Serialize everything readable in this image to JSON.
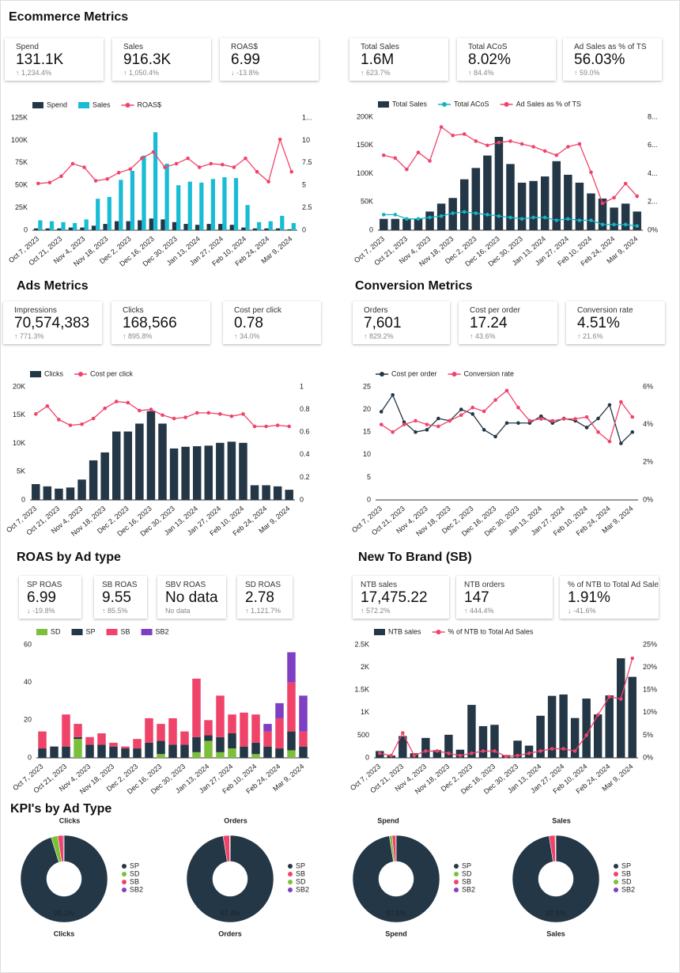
{
  "headings": [
    "Ecommerce Metrics",
    "Ads Metrics",
    "Conversion Metrics",
    "ROAS by Ad type",
    "New To Brand (SB)",
    "KPI's by Ad Type"
  ],
  "kpi_cards": [
    {
      "label": "Spend",
      "value": "131.1K",
      "change": "↑ 1,234.4%"
    },
    {
      "label": "Sales",
      "value": "916.3K",
      "change": "↑ 1,050.4%"
    },
    {
      "label": "ROAS$",
      "value": "6.99",
      "change": "↓ -13.8%"
    },
    {
      "label": "Total Sales",
      "value": "1.6M",
      "change": "↑ 623.7%"
    },
    {
      "label": "Total ACoS",
      "value": "8.02%",
      "change": "↑ 84.4%"
    },
    {
      "label": "Ad Sales as % of TS",
      "value": "56.03%",
      "change": "↑ 59.0%"
    },
    {
      "label": "Impressions",
      "value": "70,574,383",
      "change": "↑ 771.3%"
    },
    {
      "label": "Clicks",
      "value": "168,566",
      "change": "↑ 895.8%"
    },
    {
      "label": "Cost per click",
      "value": "0.78",
      "change": "↑ 34.0%"
    },
    {
      "label": "Orders",
      "value": "7,601",
      "change": "↑ 829.2%"
    },
    {
      "label": "Cost per order",
      "value": "17.24",
      "change": "↑ 43.6%"
    },
    {
      "label": "Conversion rate",
      "value": "4.51%",
      "change": "↑ 21.6%"
    },
    {
      "label": "SP ROAS",
      "value": "6.99",
      "change": "↓ -19.8%"
    },
    {
      "label": "SB ROAS",
      "value": "9.55",
      "change": "↑ 85.5%"
    },
    {
      "label": "SBV ROAS",
      "value": "No data",
      "change": "No data"
    },
    {
      "label": "SD ROAS",
      "value": "2.78",
      "change": "↑ 1,121.7%"
    },
    {
      "label": "NTB sales",
      "value": "17,475.22",
      "change": "↑ 572.2%"
    },
    {
      "label": "NTB orders",
      "value": "147",
      "change": "↑ 444.4%"
    },
    {
      "label": "% of NTB to Total Ad Sales",
      "value": "1.91%",
      "change": "↓ -41.6%"
    }
  ],
  "chart_data": [
    {
      "type": "combo",
      "grid": false,
      "legend": "top-left",
      "categories": [
        "Oct 7, 2023",
        null,
        "Oct 21, 2023",
        null,
        "Nov 4, 2023",
        null,
        "Nov 18, 2023",
        null,
        "Dec 2, 2023",
        null,
        "Dec 16, 2023",
        null,
        "Dec 30, 2023",
        null,
        "Jan 13, 2024",
        null,
        "Jan 27, 2024",
        null,
        "Feb 10, 2024",
        null,
        "Feb 24, 2024",
        null,
        "Mar 9, 2024"
      ],
      "ylim": [
        0,
        125000
      ],
      "yticks": [
        0,
        {
          "value": 25000,
          "label": "25K"
        },
        {
          "value": 50000,
          "label": "50K"
        },
        {
          "value": 75000,
          "label": "75K"
        },
        {
          "value": 100000,
          "label": "100K"
        },
        {
          "value": 125000,
          "label": "125K"
        }
      ],
      "y2lim": [
        0,
        12.5
      ],
      "y2ticks": [
        0,
        2.5,
        5,
        7.5,
        10,
        {
          "value": 12.5,
          "label": "1..."
        }
      ],
      "series": [
        {
          "name": "Spend",
          "kind": "bar",
          "color": "#243746",
          "values": [
            2000,
            2000,
            2000,
            3000,
            3000,
            5000,
            7000,
            10000,
            10000,
            11000,
            13000,
            12000,
            9000,
            7000,
            6000,
            7000,
            7000,
            6000,
            3000,
            2000,
            2000,
            2000,
            1000
          ]
        },
        {
          "name": "Sales",
          "kind": "bar",
          "color": "#19bcd4",
          "values": [
            11000,
            10000,
            9000,
            8000,
            12000,
            35000,
            37000,
            56000,
            66000,
            83000,
            109000,
            74000,
            50000,
            54000,
            53000,
            57000,
            59000,
            58000,
            28000,
            9000,
            10000,
            16000,
            8000
          ]
        },
        {
          "name": "ROAS$",
          "kind": "line",
          "axis": "y2",
          "color": "#f0436a",
          "values": [
            5.2,
            5.3,
            6.0,
            7.4,
            7.0,
            5.5,
            5.7,
            6.4,
            6.8,
            8.0,
            8.7,
            7.0,
            7.4,
            8.0,
            7.0,
            7.4,
            7.3,
            7.0,
            8.0,
            6.5,
            5.4,
            10.1,
            6.5
          ]
        }
      ]
    },
    {
      "type": "combo",
      "grid": false,
      "legend": "top-left",
      "categories": [
        "Oct 7, 2023",
        null,
        "Oct 21, 2023",
        null,
        "Nov 4, 2023",
        null,
        "Nov 18, 2023",
        null,
        "Dec 2, 2023",
        null,
        "Dec 16, 2023",
        null,
        "Dec 30, 2023",
        null,
        "Jan 13, 2024",
        null,
        "Jan 27, 2024",
        null,
        "Feb 10, 2024",
        null,
        "Feb 24, 2024",
        null,
        "Mar 9, 2024"
      ],
      "ylim": [
        0,
        200000
      ],
      "yticks": [
        0,
        {
          "value": 50000,
          "label": "50K"
        },
        {
          "value": 100000,
          "label": "100K"
        },
        {
          "value": 150000,
          "label": "150K"
        },
        {
          "value": 200000,
          "label": "200K"
        }
      ],
      "y2lim": [
        0,
        8
      ],
      "y2ticks": [
        {
          "value": 0,
          "label": "0%"
        },
        {
          "value": 2,
          "label": "2..."
        },
        {
          "value": 4,
          "label": "4..."
        },
        {
          "value": 6,
          "label": "6..."
        },
        {
          "value": 8,
          "label": "8..."
        }
      ],
      "series": [
        {
          "name": "Total Sales",
          "kind": "bar",
          "color": "#243746",
          "values": [
            20000,
            20000,
            20000,
            20000,
            33000,
            47000,
            57000,
            90000,
            110000,
            132000,
            165000,
            117000,
            84000,
            87000,
            95000,
            122000,
            98000,
            84000,
            65000,
            56000,
            40000,
            47000,
            33000
          ]
        },
        {
          "name": "Total ACoS",
          "kind": "line",
          "axis": "y2",
          "color": "#14b4c4",
          "values": [
            1.1,
            1.1,
            0.8,
            0.8,
            0.9,
            1.0,
            1.2,
            1.3,
            1.2,
            1.1,
            1.0,
            0.9,
            0.8,
            0.9,
            0.9,
            0.7,
            0.8,
            0.7,
            0.7,
            0.4,
            0.4,
            0.4,
            0.3
          ]
        },
        {
          "name": "Ad Sales as % of TS",
          "kind": "line",
          "axis": "y2",
          "color": "#f0436a",
          "values": [
            5.3,
            5.1,
            4.3,
            5.5,
            4.9,
            7.3,
            6.7,
            6.8,
            6.3,
            6.0,
            6.2,
            6.3,
            6.1,
            5.9,
            5.6,
            5.3,
            5.9,
            6.1,
            4.1,
            1.9,
            2.3,
            3.3,
            2.4
          ]
        }
      ]
    },
    {
      "type": "combo",
      "grid": false,
      "legend": "top-left",
      "categories": [
        "Oct 7, 2023",
        null,
        "Oct 21, 2023",
        null,
        "Nov 4, 2023",
        null,
        "Nov 18, 2023",
        null,
        "Dec 2, 2023",
        null,
        "Dec 16, 2023",
        null,
        "Dec 30, 2023",
        null,
        "Jan 13, 2024",
        null,
        "Jan 27, 2024",
        null,
        "Feb 10, 2024",
        null,
        "Feb 24, 2024",
        null,
        "Mar 9, 2024"
      ],
      "ylim": [
        0,
        20000
      ],
      "yticks": [
        0,
        {
          "value": 5000,
          "label": "5K"
        },
        {
          "value": 10000,
          "label": "10K"
        },
        {
          "value": 15000,
          "label": "15K"
        },
        {
          "value": 20000,
          "label": "20K"
        }
      ],
      "y2lim": [
        0,
        1
      ],
      "y2ticks": [
        0,
        0.2,
        0.4,
        0.6,
        0.8,
        1
      ],
      "series": [
        {
          "name": "Clicks",
          "kind": "bar",
          "color": "#243746",
          "values": [
            2800,
            2400,
            2000,
            2200,
            3600,
            7000,
            8400,
            12100,
            12100,
            13500,
            15700,
            13500,
            9100,
            9400,
            9500,
            9600,
            10100,
            10300,
            10100,
            2600,
            2600,
            2400,
            1800
          ]
        },
        {
          "name": "Cost per click",
          "kind": "line",
          "axis": "y2",
          "color": "#f0436a",
          "values": [
            0.76,
            0.83,
            0.71,
            0.66,
            0.67,
            0.72,
            0.81,
            0.87,
            0.86,
            0.79,
            0.8,
            0.75,
            0.72,
            0.73,
            0.77,
            0.77,
            0.76,
            0.74,
            0.76,
            0.65,
            0.65,
            0.66,
            0.65
          ]
        }
      ]
    },
    {
      "type": "combo",
      "grid": false,
      "legend": "top-left",
      "categories": [
        "Oct 7, 2023",
        null,
        "Oct 21, 2023",
        null,
        "Nov 4, 2023",
        null,
        "Nov 18, 2023",
        null,
        "Dec 2, 2023",
        null,
        "Dec 16, 2023",
        null,
        "Dec 30, 2023",
        null,
        "Jan 13, 2024",
        null,
        "Jan 27, 2024",
        null,
        "Feb 10, 2024",
        null,
        "Feb 24, 2024",
        null,
        "Mar 9, 2024"
      ],
      "ylim": [
        0,
        25
      ],
      "yticks": [
        0,
        5,
        10,
        15,
        20,
        25
      ],
      "y2lim": [
        0,
        6
      ],
      "y2ticks": [
        {
          "value": 0,
          "label": "0%"
        },
        {
          "value": 2,
          "label": "2%"
        },
        {
          "value": 4,
          "label": "4%"
        },
        {
          "value": 6,
          "label": "6%"
        }
      ],
      "series": [
        {
          "name": "Cost per order",
          "kind": "line",
          "color": "#243746",
          "values": [
            19.5,
            23.2,
            17.2,
            15,
            15.5,
            18,
            17.5,
            20,
            19,
            15.5,
            14,
            17,
            17,
            17,
            18.5,
            17,
            18,
            17.5,
            16,
            18,
            21,
            12.5,
            15
          ]
        },
        {
          "name": "Conversion rate",
          "kind": "line",
          "axis": "y2",
          "color": "#f0436a",
          "values": [
            4.0,
            3.6,
            4.0,
            4.2,
            4.0,
            3.9,
            4.2,
            4.5,
            4.9,
            4.7,
            5.3,
            5.8,
            4.9,
            4.2,
            4.3,
            4.2,
            4.3,
            4.3,
            4.4,
            3.6,
            3.1,
            5.2,
            4.4
          ]
        }
      ]
    },
    {
      "type": "stacked",
      "grid": false,
      "legend": "top-left",
      "categories": [
        "Oct 7, 2023",
        null,
        "Oct 21, 2023",
        null,
        "Nov 4, 2023",
        null,
        "Nov 18, 2023",
        null,
        "Dec 2, 2023",
        null,
        "Dec 16, 2023",
        null,
        "Dec 30, 2023",
        null,
        "Jan 13, 2024",
        null,
        "Jan 27, 2024",
        null,
        "Feb 10, 2024",
        null,
        "Feb 24, 2024",
        null,
        "Mar 9, 2024"
      ],
      "ylim": [
        0,
        60
      ],
      "yticks": [
        0,
        20,
        40,
        60
      ],
      "series": [
        {
          "name": "SD",
          "kind": "bar",
          "color": "#7cbf3a",
          "values": [
            0,
            0,
            0,
            10,
            0,
            0,
            0,
            0,
            0,
            0,
            2,
            0,
            0,
            3,
            9,
            3,
            5,
            0,
            2,
            0,
            0,
            4,
            0
          ]
        },
        {
          "name": "SP",
          "kind": "bar",
          "color": "#243746",
          "values": [
            5,
            6,
            6,
            1,
            7,
            7,
            6,
            5,
            5,
            8,
            7,
            7,
            7,
            8,
            3,
            8,
            8,
            6,
            6,
            6,
            5,
            10,
            6
          ]
        },
        {
          "name": "SB",
          "kind": "bar",
          "color": "#f0436a",
          "values": [
            9,
            0,
            17,
            7,
            4,
            6,
            2,
            1,
            5,
            13,
            9,
            14,
            7,
            31,
            8,
            22,
            10,
            18,
            15,
            8,
            16,
            26,
            8
          ]
        },
        {
          "name": "SB2",
          "kind": "bar",
          "color": "#7e3fc3",
          "values": [
            0,
            0,
            0,
            0,
            0,
            0,
            0,
            0,
            0,
            0,
            0,
            0,
            0,
            0,
            0,
            0,
            0,
            0,
            0,
            4,
            8,
            16,
            19
          ]
        }
      ]
    },
    {
      "type": "combo",
      "grid": false,
      "legend": "top-left",
      "categories": [
        "Oct 7, 2023",
        null,
        "Oct 21, 2023",
        null,
        "Nov 4, 2023",
        null,
        "Nov 18, 2023",
        null,
        "Dec 2, 2023",
        null,
        "Dec 16, 2023",
        null,
        "Dec 30, 2023",
        null,
        "Jan 13, 2024",
        null,
        "Jan 27, 2024",
        null,
        "Feb 10, 2024",
        null,
        "Feb 24, 2024",
        null,
        "Mar 9, 2024"
      ],
      "ylim": [
        0,
        2500
      ],
      "yticks": [
        0,
        500,
        {
          "value": 1000,
          "label": "1K"
        },
        {
          "value": 1500,
          "label": "1.5K"
        },
        {
          "value": 2000,
          "label": "2K"
        },
        {
          "value": 2500,
          "label": "2.5K"
        }
      ],
      "y2lim": [
        0,
        25
      ],
      "y2ticks": [
        {
          "value": 0,
          "label": "0%"
        },
        {
          "value": 5,
          "label": "5%"
        },
        {
          "value": 10,
          "label": "10%"
        },
        {
          "value": 15,
          "label": "15%"
        },
        {
          "value": 20,
          "label": "20%"
        },
        {
          "value": 25,
          "label": "25%"
        }
      ],
      "series": [
        {
          "name": "NTB sales",
          "kind": "bar",
          "color": "#243746",
          "values": [
            150,
            50,
            480,
            100,
            440,
            170,
            510,
            180,
            1170,
            700,
            730,
            60,
            380,
            270,
            930,
            1370,
            1400,
            880,
            1310,
            960,
            1380,
            2200,
            1790
          ]
        },
        {
          "name": "% of NTB to Total Ad Sales",
          "kind": "line",
          "axis": "y2",
          "color": "#f0436a",
          "values": [
            1,
            0.5,
            5.5,
            0.5,
            1.5,
            1.5,
            1,
            0.5,
            1,
            1.5,
            1.5,
            0.3,
            0.5,
            1,
            1.5,
            2,
            2,
            1.5,
            5,
            9.5,
            13.5,
            13,
            22
          ]
        }
      ]
    },
    {
      "type": "pie",
      "title": "Clicks",
      "footer": "Clicks",
      "legend": "right",
      "categories": [
        "SP",
        "SD",
        "SB",
        "SB2"
      ],
      "values": [
        95.2,
        2.5,
        2.0,
        0.3
      ],
      "value_labels": [
        "95.2%",
        null,
        null,
        null
      ],
      "colors": [
        "#243746",
        "#7cbf3a",
        "#f0436a",
        "#7e3fc3"
      ]
    },
    {
      "type": "pie",
      "title": "Orders",
      "footer": "Orders",
      "legend": "right",
      "categories": [
        "SP",
        "SB",
        "SD",
        "SB2"
      ],
      "values": [
        97.4,
        2.4,
        0.2,
        0
      ],
      "value_labels": [
        "97.4%",
        null,
        null,
        null
      ],
      "colors": [
        "#243746",
        "#f0436a",
        "#7cbf3a",
        "#7e3fc3"
      ]
    },
    {
      "type": "pie",
      "title": "Spend",
      "footer": "Spend",
      "legend": "right",
      "categories": [
        "SP",
        "SD",
        "SB",
        "SB2"
      ],
      "values": [
        97.5,
        1.0,
        1.4,
        0.1
      ],
      "value_labels": [
        "97.5%",
        null,
        null,
        null
      ],
      "colors": [
        "#243746",
        "#7cbf3a",
        "#f0436a",
        "#7e3fc3"
      ]
    },
    {
      "type": "pie",
      "title": "Sales",
      "footer": "Sales",
      "legend": "right",
      "categories": [
        "SP",
        "SB",
        "SD",
        "SB2"
      ],
      "values": [
        97.5,
        2.2,
        0.2,
        0.1
      ],
      "value_labels": [
        "97.5%",
        null,
        null,
        null
      ],
      "colors": [
        "#243746",
        "#f0436a",
        "#7cbf3a",
        "#7e3fc3"
      ]
    }
  ]
}
